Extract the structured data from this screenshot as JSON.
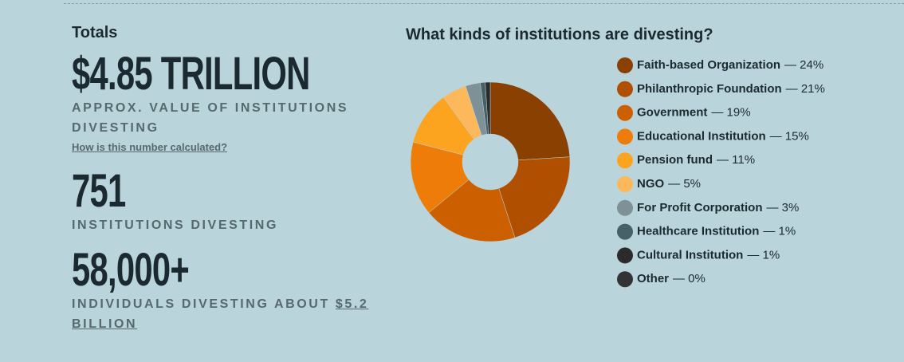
{
  "totals": {
    "heading": "Totals",
    "stats": [
      {
        "value": "$4.85 TRILLION",
        "label": "APPROX. VALUE OF INSTITUTIONS DIVESTING",
        "link": "How is this number calculated?"
      },
      {
        "value": "751",
        "label": "INSTITUTIONS DIVESTING"
      },
      {
        "value": "58,000+",
        "label": "INDIVIDUALS DIVESTING ABOUT",
        "label_link": "$5.2 BILLION"
      }
    ]
  },
  "chart_data": {
    "type": "pie",
    "donut": true,
    "title": "What kinds of institutions are divesting?",
    "categories": [
      "Faith-based Organization",
      "Philanthropic Foundation",
      "Government",
      "Educational Institution",
      "Pension fund",
      "NGO",
      "For Profit Corporation",
      "Healthcare Institution",
      "Cultural Institution",
      "Other"
    ],
    "values": [
      24,
      21,
      19,
      15,
      11,
      5,
      3,
      1,
      1,
      0
    ],
    "value_labels": [
      "— 24%",
      "— 21%",
      "— 19%",
      "— 15%",
      "— 11%",
      "— 5%",
      "— 3%",
      "— 1%",
      "— 1%",
      "— 0%"
    ],
    "colors": [
      "#8a4000",
      "#b04f00",
      "#cc5f00",
      "#ed7d08",
      "#fca420",
      "#fdb85c",
      "#7d9196",
      "#476166",
      "#2b2b2b",
      "#333333"
    ]
  }
}
